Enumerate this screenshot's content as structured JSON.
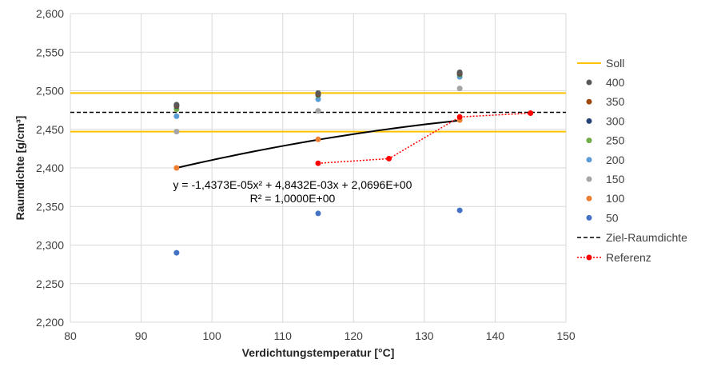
{
  "chart_data": {
    "type": "scatter",
    "xlabel": "Verdichtungstemperatur [°C]",
    "ylabel": "Raumdichte [g/cm³]",
    "xlim": [
      80,
      150
    ],
    "ylim": [
      2.2,
      2.6
    ],
    "xticks": [
      80,
      90,
      100,
      110,
      120,
      130,
      140,
      150
    ],
    "yticks": [
      "2,200",
      "2,250",
      "2,300",
      "2,350",
      "2,400",
      "2,450",
      "2,500",
      "2,550",
      "2,600"
    ],
    "grid": true,
    "legend": "right",
    "x": [
      95,
      115,
      135
    ],
    "series": [
      {
        "name": "400",
        "color": "#595959",
        "values": [
          2.482,
          2.497,
          2.524
        ]
      },
      {
        "name": "350",
        "color": "#9E480E",
        "values": [
          2.481,
          2.496,
          2.523
        ]
      },
      {
        "name": "300",
        "color": "#264478",
        "values": [
          2.48,
          2.495,
          2.522
        ]
      },
      {
        "name": "250",
        "color": "#70AD47",
        "values": [
          2.476,
          2.494,
          2.521
        ]
      },
      {
        "name": "200",
        "color": "#5B9BD5",
        "values": [
          2.467,
          2.489,
          2.518
        ]
      },
      {
        "name": "150",
        "color": "#A5A5A5",
        "values": [
          2.447,
          2.474,
          2.503
        ]
      },
      {
        "name": "100",
        "color": "#ED7D31",
        "values": [
          2.4,
          2.437,
          2.462
        ]
      },
      {
        "name": "50",
        "color": "#4472C4",
        "values": [
          2.29,
          2.341,
          2.345
        ]
      }
    ],
    "soll": {
      "name": "Soll",
      "color": "#FFC000",
      "values": [
        2.497,
        2.447
      ]
    },
    "ziel": {
      "name": "Ziel-Raumdichte",
      "color": "#000000",
      "value": 2.472
    },
    "referenz": {
      "name": "Referenz",
      "color": "#FF0000",
      "x": [
        115,
        125,
        135,
        145
      ],
      "values": [
        2.406,
        2.412,
        2.466,
        2.471
      ]
    },
    "trendline": {
      "equation": "y = -1,4373E-05x² + 4,8432E-03x + 2,0696E+00",
      "r2": "R² = 1,0000E+00",
      "coef": [
        -1.4373e-05,
        0.0048432,
        2.0696
      ],
      "xrange": [
        95,
        135
      ]
    }
  }
}
